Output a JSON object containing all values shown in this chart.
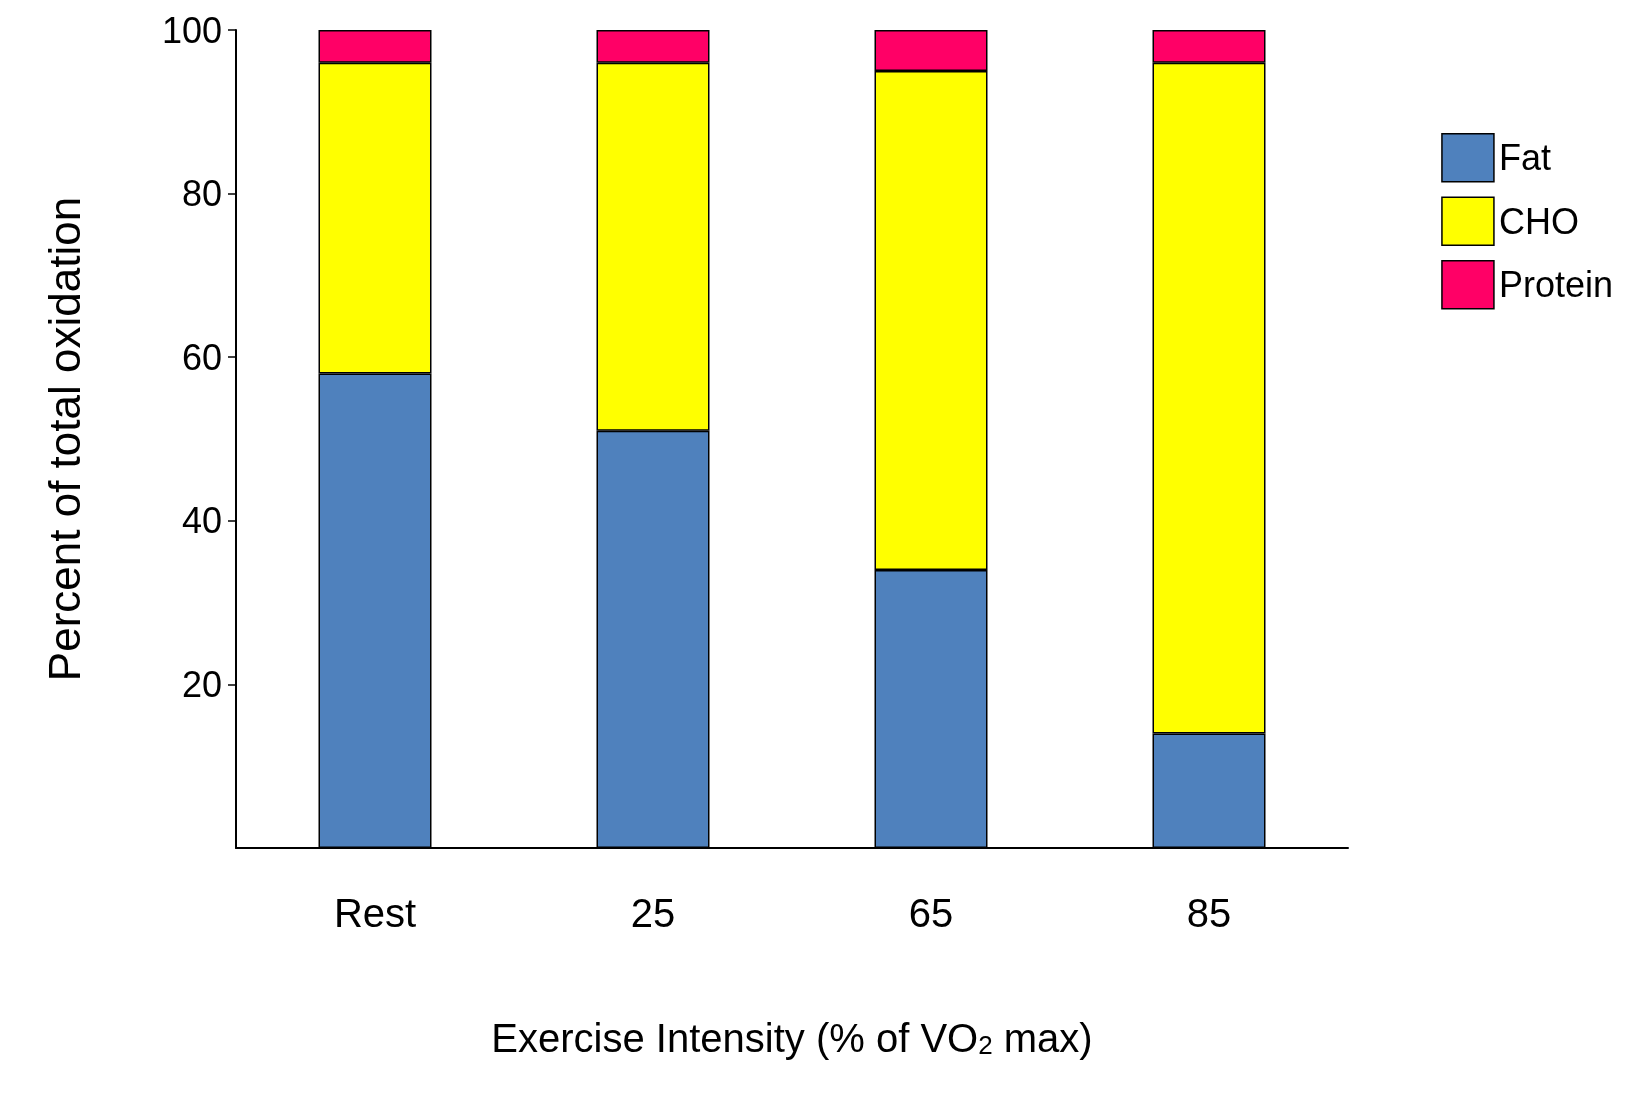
{
  "chart_data": {
    "type": "bar",
    "stacked": true,
    "categories": [
      "Rest",
      "25",
      "65",
      "85"
    ],
    "series": [
      {
        "name": "Fat",
        "color": "#4f81bd",
        "values": [
          58,
          51,
          34,
          14
        ]
      },
      {
        "name": "CHO",
        "color": "#ffff00",
        "values": [
          38,
          45,
          61,
          82
        ]
      },
      {
        "name": "Protein",
        "color": "#ff0066",
        "values": [
          4,
          4,
          5,
          4
        ]
      }
    ],
    "xlabel": "Exercise Intensity (% of VO$_{2}$ max)",
    "ylabel": "Percent of total oxidation",
    "ylim": [
      0,
      100
    ],
    "yticks": [
      20,
      40,
      60,
      80,
      100
    ],
    "grid": false,
    "legend": "right"
  }
}
